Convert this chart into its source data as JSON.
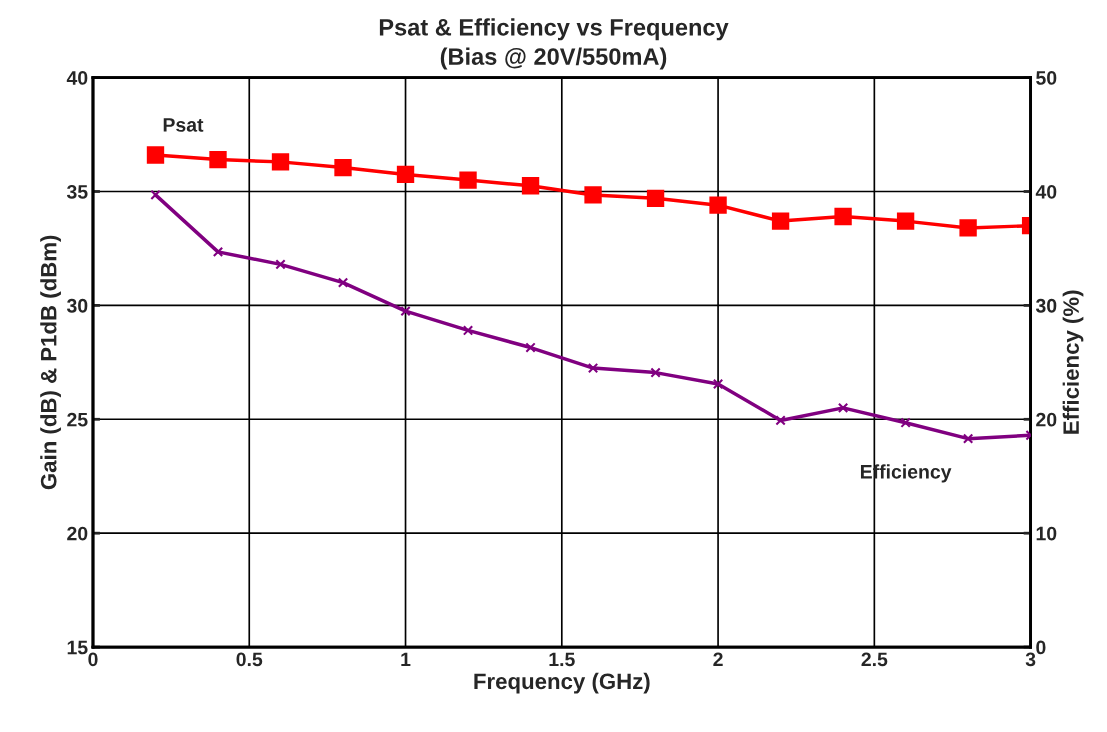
{
  "chart_data": {
    "type": "line",
    "title": "Psat & Efficiency vs Frequency",
    "subtitle": "(Bias @ 20V/550mA)",
    "xlabel": "Frequency (GHz)",
    "ylabel": "Gain (dB) & P1dB (dBm)",
    "y2label": "Efficiency (%)",
    "x": [
      0.2,
      0.4,
      0.6,
      0.8,
      1.0,
      1.2,
      1.4,
      1.6,
      1.8,
      2.0,
      2.2,
      2.4,
      2.6,
      2.8,
      3.0
    ],
    "series": [
      {
        "name": "Psat",
        "color": "#ff0000",
        "marker": "square",
        "values": [
          36.6,
          36.4,
          36.3,
          36.05,
          35.75,
          35.5,
          35.25,
          34.85,
          34.7,
          34.4,
          33.7,
          33.9,
          33.7,
          33.4,
          33.5
        ]
      },
      {
        "name": "Efficiency",
        "color": "#800080",
        "marker": "cross",
        "axis": "y2",
        "values": [
          39.7,
          34.7,
          33.6,
          32.0,
          29.5,
          27.8,
          26.3,
          24.5,
          24.1,
          23.1,
          19.9,
          21.0,
          19.7,
          18.3,
          18.6
        ]
      }
    ],
    "xlim": [
      0,
      3
    ],
    "xticks": [
      0,
      0.5,
      1,
      1.5,
      2,
      2.5,
      3
    ],
    "ylim": [
      15,
      40
    ],
    "yticks": [
      15,
      20,
      25,
      30,
      35,
      40
    ],
    "y2lim": [
      0,
      50
    ],
    "y2ticks": [
      0,
      10,
      20,
      30,
      40,
      50
    ],
    "grid": true,
    "legend": false
  }
}
